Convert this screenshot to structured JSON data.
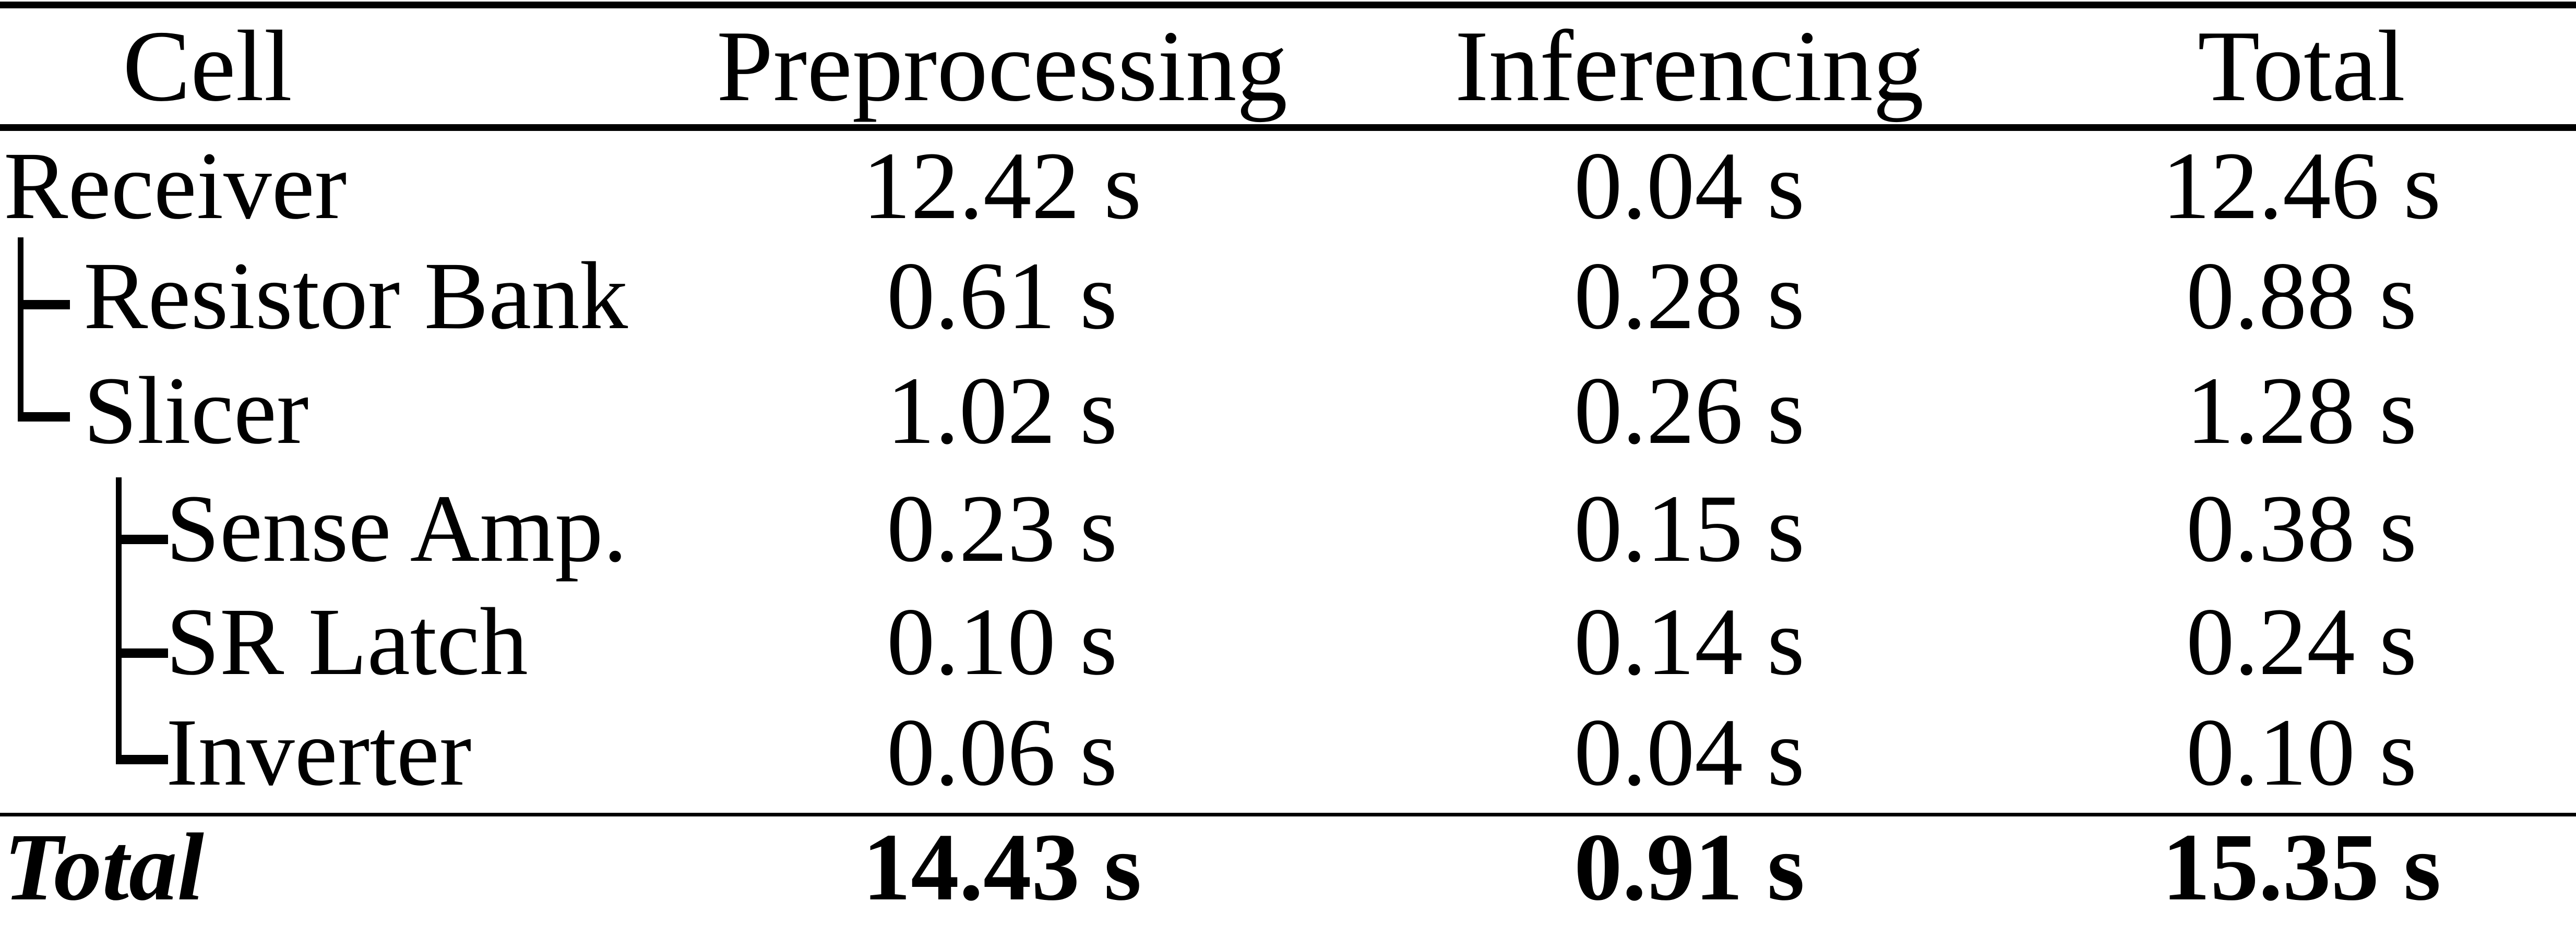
{
  "colors": {
    "background": "#ffffff",
    "text": "#000000",
    "rule": "#000000"
  },
  "table": {
    "headers": {
      "cell": "Cell",
      "preprocessing": "Preprocessing",
      "inferencing": "Inferencing",
      "total": "Total"
    },
    "rows": [
      {
        "cell": "Receiver",
        "level": 0,
        "connector": "none",
        "preprocessing": "12.42 s",
        "inferencing": "0.04 s",
        "total": "12.46 s"
      },
      {
        "cell": "Resistor Bank",
        "level": 1,
        "connector": "tee",
        "preprocessing": "0.61 s",
        "inferencing": "0.28 s",
        "total": "0.88 s"
      },
      {
        "cell": "Slicer",
        "level": 1,
        "connector": "corner",
        "preprocessing": "1.02 s",
        "inferencing": "0.26 s",
        "total": "1.28 s"
      },
      {
        "cell": "Sense Amp.",
        "level": 2,
        "connector": "tee",
        "preprocessing": "0.23 s",
        "inferencing": "0.15 s",
        "total": "0.38 s"
      },
      {
        "cell": "SR Latch",
        "level": 2,
        "connector": "tee",
        "preprocessing": "0.10 s",
        "inferencing": "0.14 s",
        "total": "0.24 s"
      },
      {
        "cell": "Inverter",
        "level": 2,
        "connector": "corner",
        "preprocessing": "0.06 s",
        "inferencing": "0.04 s",
        "total": "0.10 s"
      }
    ],
    "footer": {
      "cell": "Total",
      "preprocessing": "14.43 s",
      "inferencing": "0.91 s",
      "total": "15.35 s"
    }
  }
}
